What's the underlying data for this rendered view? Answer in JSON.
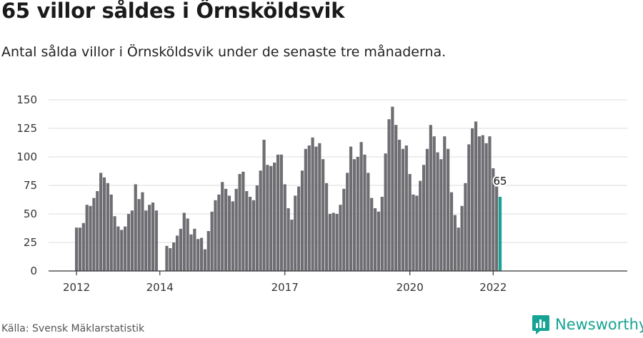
{
  "title": "65 villor såldes i Örnsköldsvik",
  "subtitle": "Antal sålda villor i Örnsköldsvik under de senaste tre månaderna.",
  "source": "Källa: Svensk Mäklarstatistik",
  "brand": {
    "name": "Newsworthy",
    "icon": "newsworthy-logo-icon"
  },
  "colors": {
    "bar": "#6e6d72",
    "highlight": "#16a394",
    "grid": "#dddddd",
    "axis": "#333333",
    "text": "#1a1a1a"
  },
  "chart_data": {
    "type": "bar",
    "title": "65 villor såldes i Örnsköldsvik",
    "subtitle": "Antal sålda villor i Örnsköldsvik under de senaste tre månaderna.",
    "xlabel": "",
    "ylabel": "",
    "ylim": [
      0,
      150
    ],
    "y_ticks": [
      0,
      25,
      50,
      75,
      100,
      125,
      150
    ],
    "x_ticks": [
      "2012",
      "2014",
      "2017",
      "2020",
      "2022"
    ],
    "grid": true,
    "x_start": "2012-01",
    "x_end": "2022-02",
    "values": [
      38,
      38,
      42,
      58,
      57,
      64,
      70,
      86,
      82,
      77,
      67,
      48,
      39,
      36,
      39,
      50,
      53,
      76,
      63,
      69,
      53,
      58,
      60,
      53,
      null,
      null,
      22,
      20,
      25,
      31,
      37,
      51,
      46,
      32,
      37,
      28,
      29,
      19,
      35,
      52,
      62,
      67,
      78,
      72,
      66,
      61,
      72,
      85,
      87,
      70,
      65,
      62,
      75,
      88,
      115,
      93,
      92,
      95,
      102,
      102,
      76,
      55,
      45,
      66,
      74,
      88,
      107,
      110,
      117,
      109,
      112,
      98,
      77,
      50,
      51,
      50,
      58,
      72,
      86,
      109,
      98,
      100,
      113,
      102,
      86,
      64,
      55,
      52,
      65,
      103,
      133,
      144,
      128,
      115,
      107,
      110,
      85,
      67,
      66,
      79,
      93,
      107,
      128,
      118,
      104,
      98,
      118,
      107,
      69,
      49,
      38,
      57,
      77,
      111,
      125,
      131,
      118,
      119,
      112,
      118,
      90,
      74,
      65
    ],
    "highlight_index": 122,
    "highlight_label": "65"
  }
}
